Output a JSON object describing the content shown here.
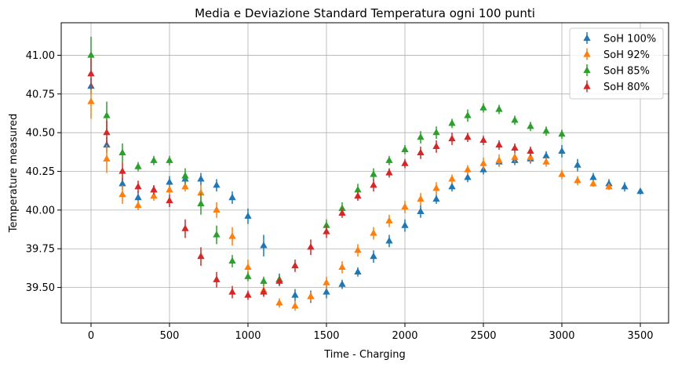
{
  "chart_data": {
    "type": "scatter",
    "title": "Media e Deviazione Standard Temperatura ogni 100 punti",
    "xlabel": "Time - Charging",
    "ylabel": "Temperature measured",
    "xlim": [
      -190,
      3680
    ],
    "ylim": [
      39.27,
      41.21
    ],
    "xticks": [
      0,
      500,
      1000,
      1500,
      2000,
      2500,
      3000,
      3500
    ],
    "yticks": [
      39.5,
      39.75,
      40.0,
      40.25,
      40.5,
      40.75,
      41.0
    ],
    "xtick_labels": [
      "0",
      "500",
      "1000",
      "1500",
      "2000",
      "2500",
      "3000",
      "3500"
    ],
    "ytick_labels": [
      "39.50",
      "39.75",
      "40.00",
      "40.25",
      "40.50",
      "40.75",
      "41.00"
    ],
    "grid": true,
    "marker": "triangle-up",
    "legend_position": "top-right",
    "x": [
      0,
      100,
      200,
      300,
      400,
      500,
      600,
      700,
      800,
      900,
      1000,
      1100,
      1200,
      1300,
      1400,
      1500,
      1600,
      1700,
      1800,
      1900,
      2000,
      2100,
      2200,
      2300,
      2400,
      2500,
      2600,
      2700,
      2800,
      2900,
      3000,
      3100,
      3200,
      3300,
      3400,
      3500
    ],
    "series": [
      {
        "name": "SoH 100%",
        "color": "#1f77b4",
        "values": [
          40.8,
          40.42,
          40.17,
          40.08,
          40.13,
          40.18,
          40.2,
          40.2,
          40.16,
          40.08,
          39.96,
          39.77,
          39.55,
          39.45,
          39.44,
          39.47,
          39.52,
          39.6,
          39.7,
          39.8,
          39.9,
          39.99,
          40.07,
          40.15,
          40.21,
          40.26,
          40.31,
          40.32,
          40.33,
          40.35,
          40.38,
          40.29,
          40.21,
          40.17,
          40.15,
          40.12
        ],
        "errors": [
          0.05,
          0.05,
          0.04,
          0.04,
          0.03,
          0.04,
          0.04,
          0.04,
          0.04,
          0.04,
          0.05,
          0.07,
          0.04,
          0.04,
          0.04,
          0.04,
          0.03,
          0.03,
          0.04,
          0.04,
          0.04,
          0.04,
          0.03,
          0.03,
          0.03,
          0.03,
          0.03,
          0.03,
          0.03,
          0.03,
          0.04,
          0.04,
          0.03,
          0.03,
          0.03,
          0.02
        ]
      },
      {
        "name": "SoH 92%",
        "color": "#ff7f0e",
        "values": [
          40.7,
          40.33,
          40.1,
          40.03,
          40.09,
          40.13,
          40.15,
          40.11,
          40.0,
          39.83,
          39.63,
          39.48,
          39.4,
          39.38,
          39.44,
          39.53,
          39.63,
          39.74,
          39.85,
          39.93,
          40.02,
          40.07,
          40.14,
          40.2,
          40.26,
          40.3,
          40.32,
          40.34,
          40.34,
          40.31,
          40.23,
          40.19,
          40.17,
          40.15,
          null,
          null
        ],
        "errors": [
          0.11,
          0.09,
          0.06,
          0.03,
          0.03,
          0.03,
          0.03,
          0.05,
          0.05,
          0.06,
          0.05,
          0.04,
          0.03,
          0.03,
          0.03,
          0.04,
          0.04,
          0.04,
          0.04,
          0.04,
          0.04,
          0.04,
          0.04,
          0.03,
          0.03,
          0.04,
          0.04,
          0.03,
          0.03,
          0.03,
          0.03,
          0.03,
          0.02,
          0.02,
          null,
          null
        ]
      },
      {
        "name": "SoH 85%",
        "color": "#2ca02c",
        "values": [
          41.0,
          40.61,
          40.37,
          40.28,
          40.32,
          40.32,
          40.22,
          40.04,
          39.84,
          39.67,
          39.57,
          39.54,
          39.55,
          null,
          null,
          39.9,
          40.01,
          40.13,
          40.23,
          40.32,
          40.39,
          40.47,
          40.5,
          40.56,
          40.61,
          40.66,
          40.65,
          40.58,
          40.54,
          40.51,
          40.49,
          null,
          null,
          null,
          null,
          null
        ],
        "errors": [
          0.12,
          0.09,
          0.06,
          0.03,
          0.03,
          0.03,
          0.05,
          0.07,
          0.06,
          0.04,
          0.03,
          0.03,
          0.03,
          null,
          null,
          0.04,
          0.04,
          0.04,
          0.04,
          0.03,
          0.03,
          0.04,
          0.04,
          0.03,
          0.04,
          0.03,
          0.03,
          0.03,
          0.03,
          0.03,
          0.03,
          null,
          null,
          null,
          null,
          null
        ]
      },
      {
        "name": "SoH 80%",
        "color": "#d62728",
        "values": [
          40.88,
          40.5,
          40.25,
          40.15,
          40.13,
          40.06,
          39.88,
          39.7,
          39.55,
          39.47,
          39.45,
          39.47,
          39.54,
          39.64,
          39.76,
          39.86,
          39.98,
          40.09,
          40.16,
          40.24,
          40.3,
          40.37,
          40.41,
          40.46,
          40.47,
          40.45,
          40.42,
          40.4,
          40.38,
          null,
          null,
          null,
          null,
          null,
          null,
          null
        ],
        "errors": [
          0.1,
          0.08,
          0.06,
          0.04,
          0.03,
          0.04,
          0.06,
          0.06,
          0.05,
          0.04,
          0.03,
          0.03,
          0.03,
          0.04,
          0.05,
          0.04,
          0.03,
          0.03,
          0.04,
          0.03,
          0.03,
          0.04,
          0.04,
          0.04,
          0.03,
          0.03,
          0.03,
          0.03,
          0.03,
          null,
          null,
          null,
          null,
          null,
          null,
          null
        ]
      }
    ]
  }
}
